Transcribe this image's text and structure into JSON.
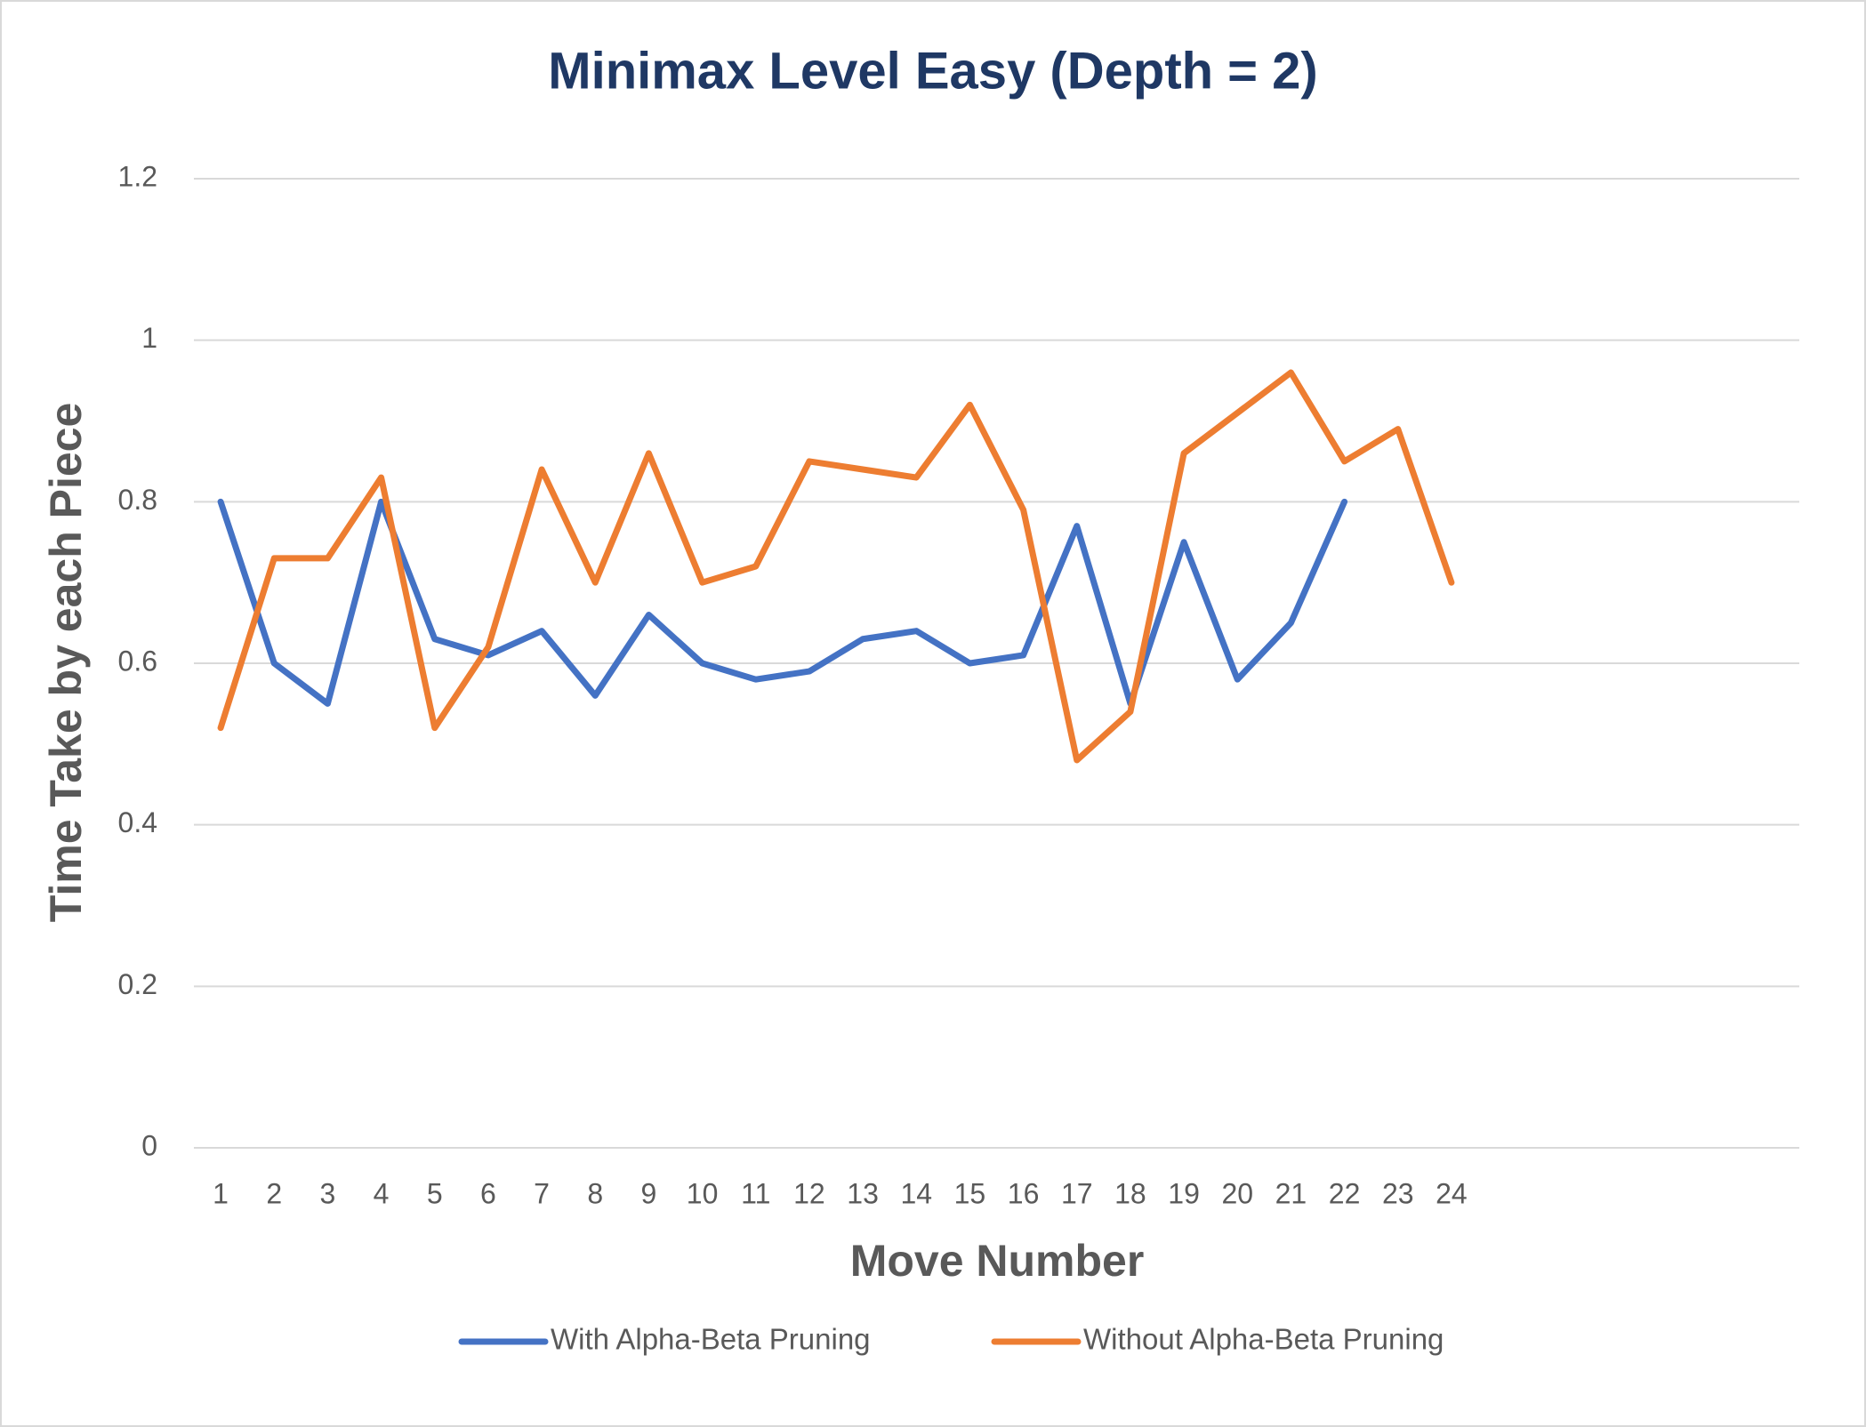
{
  "chart_data": {
    "type": "line",
    "title": "Minimax Level Easy (Depth = 2)",
    "x_label": "Move Number",
    "y_label": "Time Take by each Piece",
    "categories": [
      "1",
      "2",
      "3",
      "4",
      "5",
      "6",
      "7",
      "8",
      "9",
      "10",
      "11",
      "12",
      "13",
      "14",
      "15",
      "16",
      "17",
      "18",
      "19",
      "20",
      "21",
      "22",
      "23",
      "24",
      null,
      null,
      null,
      null,
      null,
      null
    ],
    "series": [
      {
        "name": "With Alpha-Beta Pruning",
        "color": "#4472c4",
        "values": [
          0.8,
          0.6,
          0.55,
          0.8,
          0.63,
          0.61,
          0.64,
          0.56,
          0.66,
          0.6,
          0.58,
          0.59,
          0.63,
          0.64,
          0.6,
          0.61,
          0.77,
          0.55,
          0.75,
          0.58,
          0.65,
          0.8,
          null,
          null,
          null,
          null,
          null,
          null,
          null,
          null
        ]
      },
      {
        "name": "Without Alpha-Beta Pruning",
        "color": "#ed7d31",
        "values": [
          0.52,
          0.73,
          0.73,
          0.83,
          0.52,
          0.62,
          0.84,
          0.7,
          0.86,
          0.7,
          0.72,
          0.85,
          0.84,
          0.83,
          0.92,
          0.79,
          0.48,
          0.54,
          0.86,
          0.91,
          0.96,
          0.85,
          0.89,
          0.7,
          null,
          null,
          null,
          null,
          null,
          null
        ]
      }
    ],
    "ylim": [
      0,
      1.2
    ],
    "yticks": [
      0,
      0.2,
      0.4,
      0.6,
      0.8,
      1,
      1.2
    ],
    "grid": true,
    "legend": "bottom"
  }
}
